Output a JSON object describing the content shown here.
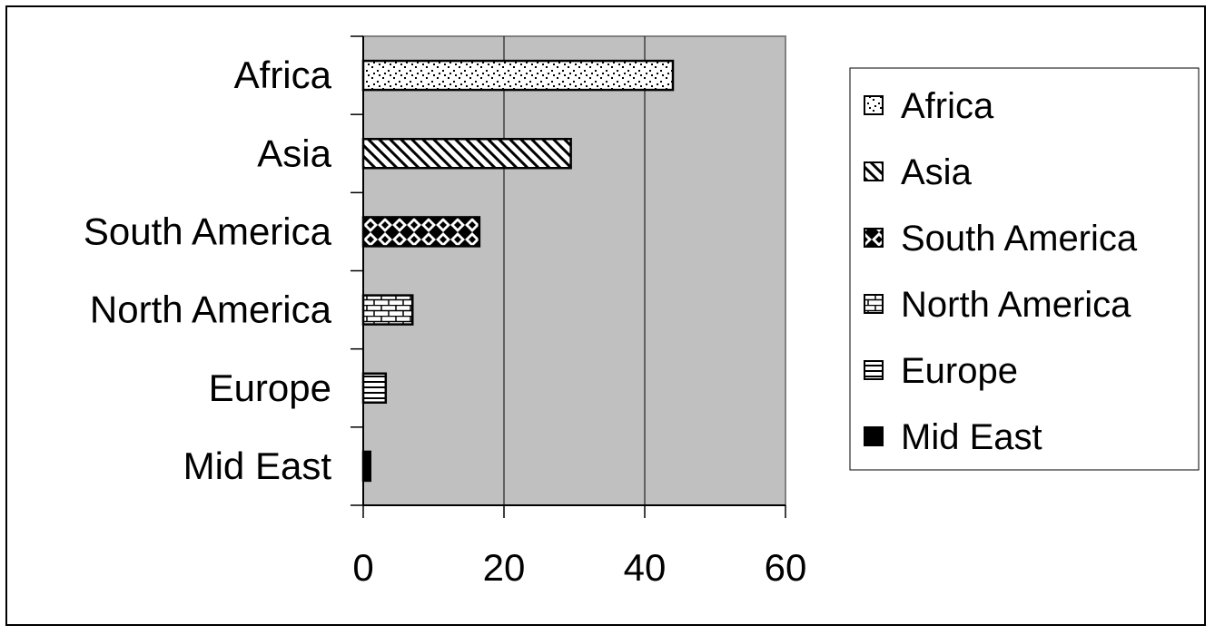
{
  "chart_data": {
    "type": "bar",
    "orientation": "horizontal",
    "categories": [
      "Africa",
      "Asia",
      "South America",
      "North America",
      "Europe",
      "Mid East"
    ],
    "values": [
      44,
      29.5,
      16.5,
      7,
      3.2,
      1
    ],
    "xlim": [
      0,
      60
    ],
    "xticks": [
      "0",
      "20",
      "40",
      "60"
    ],
    "grid": true,
    "legend": "right",
    "legend_entries": [
      "Africa",
      "Asia",
      "South America",
      "North America",
      "Europe",
      "Mid East"
    ],
    "plot_background": "#c0c0c0",
    "patterns": [
      "dots",
      "diagonal",
      "diamond",
      "brick",
      "hlines",
      "solid"
    ]
  }
}
